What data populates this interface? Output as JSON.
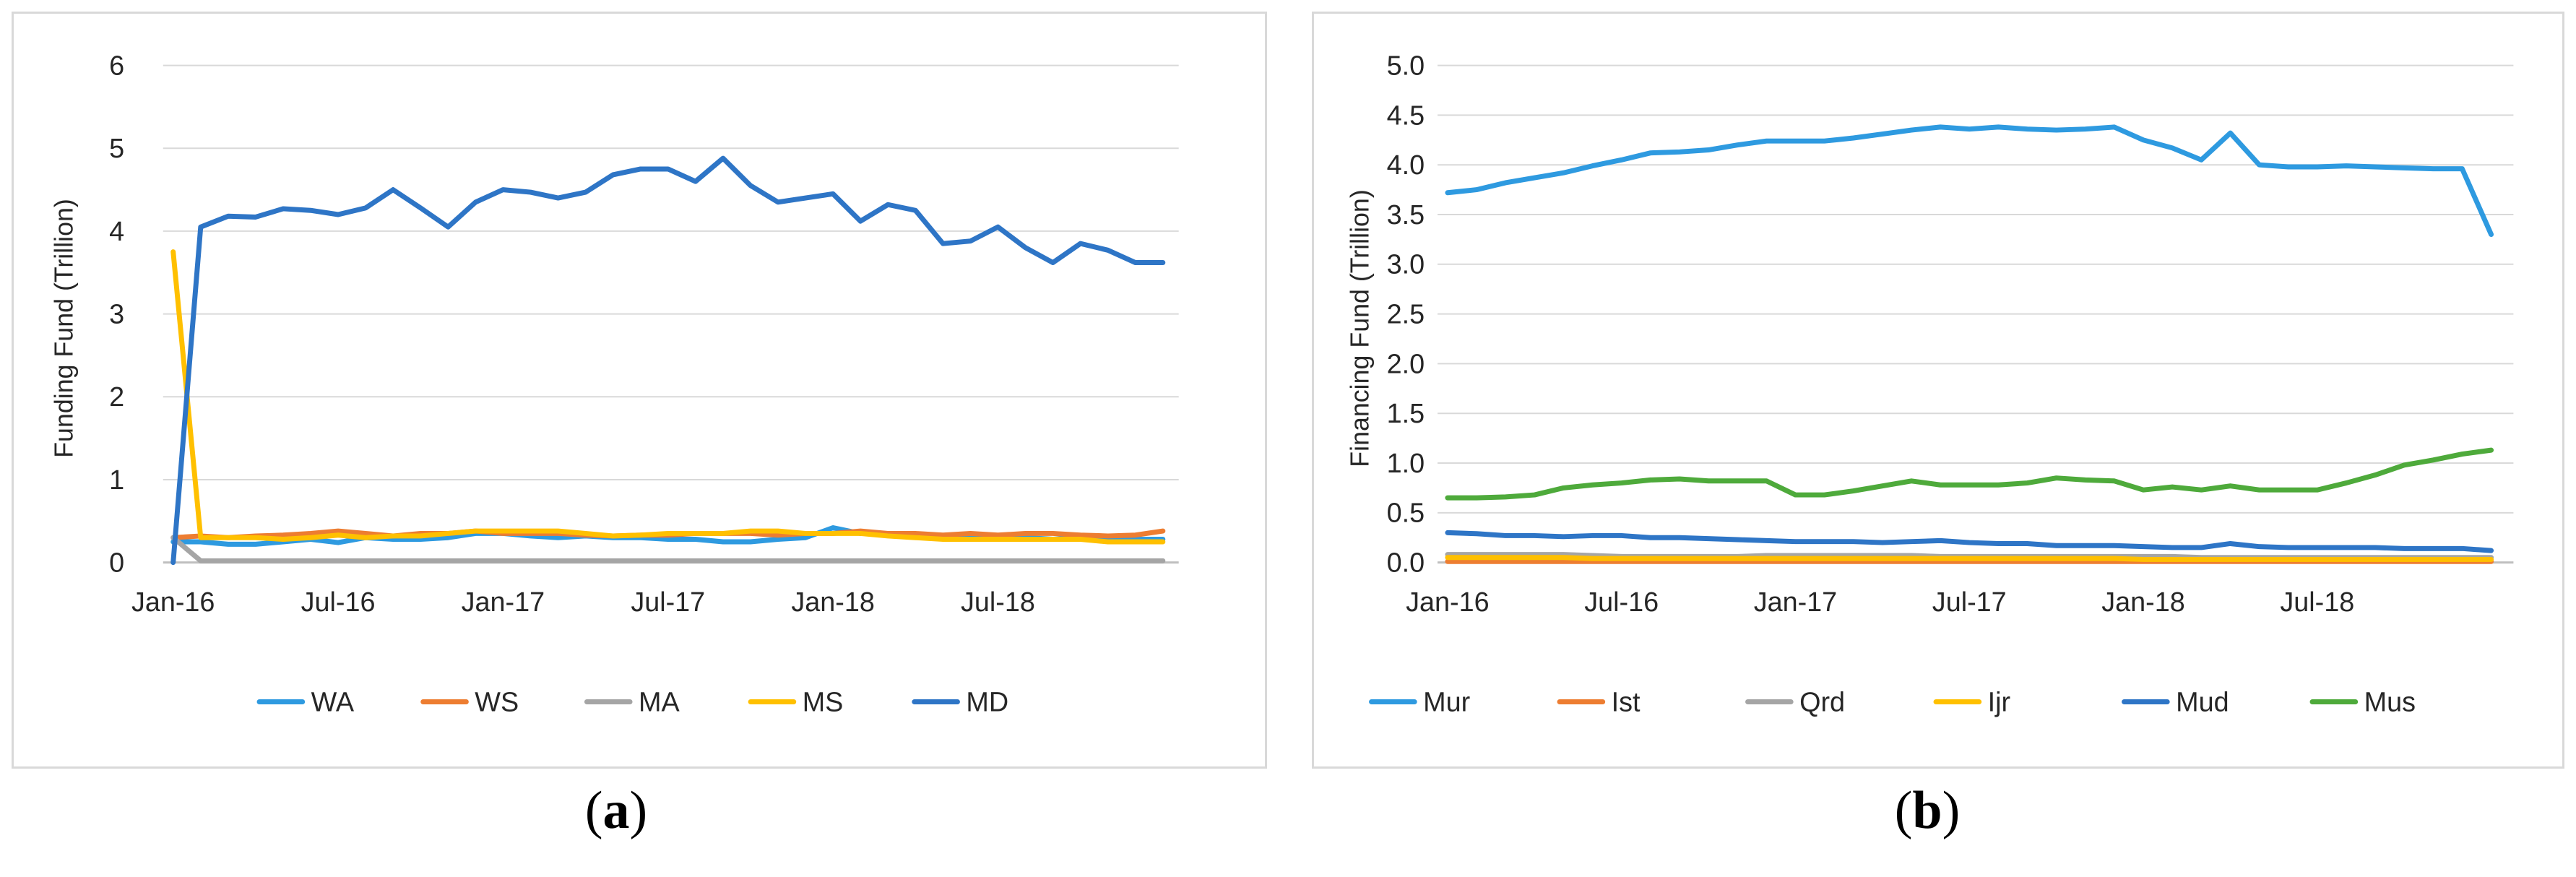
{
  "captions": {
    "a_open": "(",
    "a_letter": "a",
    "a_close": ")",
    "b_open": "(",
    "b_letter": "b",
    "b_close": ")"
  },
  "chart_data": [
    {
      "id": "a",
      "type": "line",
      "title": "",
      "xlabel": "",
      "ylabel": "Funding Fund (Trillion)",
      "ylim": [
        0,
        6
      ],
      "yticks": [
        0,
        1,
        2,
        3,
        4,
        5,
        6
      ],
      "ytick_labels": [
        "0",
        "1",
        "2",
        "3",
        "4",
        "5",
        "6"
      ],
      "xticks": [
        {
          "index": 0,
          "label": "Jan-16"
        },
        {
          "index": 6,
          "label": "Jul-16"
        },
        {
          "index": 12,
          "label": "Jan-17"
        },
        {
          "index": 18,
          "label": "Jul-17"
        },
        {
          "index": 24,
          "label": "Jan-18"
        },
        {
          "index": 30,
          "label": "Jul-18"
        }
      ],
      "grid": true,
      "legend_position": "bottom",
      "series": [
        {
          "name": "WA",
          "color": "#2e9ae0",
          "values": [
            0.25,
            0.25,
            0.22,
            0.22,
            0.25,
            0.28,
            0.24,
            0.3,
            0.28,
            0.28,
            0.3,
            0.35,
            0.35,
            0.32,
            0.3,
            0.32,
            0.3,
            0.3,
            0.28,
            0.28,
            0.25,
            0.25,
            0.28,
            0.3,
            0.42,
            0.35,
            0.35,
            0.33,
            0.32,
            0.3,
            0.3,
            0.3,
            0.28,
            0.3,
            0.28,
            0.28,
            0.28
          ]
        },
        {
          "name": "WS",
          "color": "#ed7d31",
          "values": [
            0.3,
            0.32,
            0.3,
            0.32,
            0.33,
            0.35,
            0.38,
            0.35,
            0.32,
            0.35,
            0.35,
            0.38,
            0.35,
            0.35,
            0.35,
            0.33,
            0.32,
            0.33,
            0.33,
            0.35,
            0.35,
            0.35,
            0.33,
            0.35,
            0.35,
            0.38,
            0.35,
            0.35,
            0.33,
            0.35,
            0.33,
            0.35,
            0.35,
            0.33,
            0.32,
            0.33,
            0.38
          ]
        },
        {
          "name": "MA",
          "color": "#a5a5a5",
          "values": [
            0.3,
            0.02,
            0.02,
            0.02,
            0.02,
            0.02,
            0.02,
            0.02,
            0.02,
            0.02,
            0.02,
            0.02,
            0.02,
            0.02,
            0.02,
            0.02,
            0.02,
            0.02,
            0.02,
            0.02,
            0.02,
            0.02,
            0.02,
            0.02,
            0.02,
            0.02,
            0.02,
            0.02,
            0.02,
            0.02,
            0.02,
            0.02,
            0.02,
            0.02,
            0.02,
            0.02,
            0.02
          ]
        },
        {
          "name": "MS",
          "color": "#ffc000",
          "values": [
            3.75,
            0.3,
            0.3,
            0.3,
            0.28,
            0.3,
            0.33,
            0.3,
            0.32,
            0.32,
            0.35,
            0.38,
            0.38,
            0.38,
            0.38,
            0.35,
            0.32,
            0.33,
            0.35,
            0.35,
            0.35,
            0.38,
            0.38,
            0.35,
            0.35,
            0.35,
            0.32,
            0.3,
            0.28,
            0.28,
            0.28,
            0.28,
            0.28,
            0.28,
            0.25,
            0.25,
            0.25
          ]
        },
        {
          "name": "MD",
          "color": "#2e75c6",
          "values": [
            0.0,
            4.05,
            4.18,
            4.17,
            4.27,
            4.25,
            4.2,
            4.28,
            4.5,
            4.28,
            4.05,
            4.35,
            4.5,
            4.47,
            4.4,
            4.47,
            4.68,
            4.75,
            4.75,
            4.6,
            4.88,
            4.55,
            4.35,
            4.4,
            4.45,
            4.12,
            4.32,
            4.25,
            3.85,
            3.88,
            4.05,
            3.8,
            3.62,
            3.85,
            3.77,
            3.62,
            3.62
          ]
        }
      ]
    },
    {
      "id": "b",
      "type": "line",
      "title": "",
      "xlabel": "",
      "ylabel": "Financing Fund (Trillion)",
      "ylim": [
        0,
        5
      ],
      "yticks": [
        0,
        0.5,
        1,
        1.5,
        2,
        2.5,
        3,
        3.5,
        4,
        4.5,
        5
      ],
      "ytick_labels": [
        "0.0",
        "0.5",
        "1.0",
        "1.5",
        "2.0",
        "2.5",
        "3.0",
        "3.5",
        "4.0",
        "4.5",
        "5.0"
      ],
      "xticks": [
        {
          "index": 0,
          "label": "Jan-16"
        },
        {
          "index": 6,
          "label": "Jul-16"
        },
        {
          "index": 12,
          "label": "Jan-17"
        },
        {
          "index": 18,
          "label": "Jul-17"
        },
        {
          "index": 24,
          "label": "Jan-18"
        },
        {
          "index": 30,
          "label": "Jul-18"
        }
      ],
      "grid": true,
      "legend_position": "bottom",
      "series": [
        {
          "name": "Mur",
          "color": "#2e9ae0",
          "values": [
            3.72,
            3.75,
            3.82,
            3.87,
            3.92,
            3.99,
            4.05,
            4.12,
            4.13,
            4.15,
            4.2,
            4.24,
            4.24,
            4.24,
            4.27,
            4.31,
            4.35,
            4.38,
            4.36,
            4.38,
            4.36,
            4.35,
            4.36,
            4.38,
            4.25,
            4.17,
            4.05,
            4.32,
            4.0,
            3.98,
            3.98,
            3.99,
            3.98,
            3.97,
            3.96,
            3.96,
            3.3
          ]
        },
        {
          "name": "Ist",
          "color": "#ed7d31",
          "values": [
            0.01,
            0.01,
            0.01,
            0.01,
            0.01,
            0.01,
            0.01,
            0.01,
            0.01,
            0.01,
            0.01,
            0.01,
            0.01,
            0.01,
            0.01,
            0.01,
            0.01,
            0.01,
            0.01,
            0.01,
            0.01,
            0.01,
            0.01,
            0.01,
            0.01,
            0.01,
            0.01,
            0.01,
            0.01,
            0.01,
            0.01,
            0.01,
            0.01,
            0.01,
            0.01,
            0.01,
            0.01
          ]
        },
        {
          "name": "Qrd",
          "color": "#a5a5a5",
          "values": [
            0.08,
            0.08,
            0.08,
            0.08,
            0.08,
            0.07,
            0.06,
            0.06,
            0.06,
            0.06,
            0.06,
            0.07,
            0.07,
            0.07,
            0.07,
            0.07,
            0.07,
            0.06,
            0.06,
            0.06,
            0.06,
            0.06,
            0.06,
            0.06,
            0.06,
            0.06,
            0.05,
            0.05,
            0.05,
            0.05,
            0.05,
            0.05,
            0.05,
            0.05,
            0.05,
            0.05,
            0.05
          ]
        },
        {
          "name": "Ijr",
          "color": "#ffc000",
          "values": [
            0.05,
            0.05,
            0.05,
            0.05,
            0.05,
            0.04,
            0.04,
            0.04,
            0.04,
            0.04,
            0.04,
            0.04,
            0.04,
            0.04,
            0.04,
            0.04,
            0.04,
            0.04,
            0.04,
            0.04,
            0.04,
            0.04,
            0.04,
            0.04,
            0.03,
            0.03,
            0.03,
            0.03,
            0.03,
            0.03,
            0.03,
            0.03,
            0.03,
            0.03,
            0.03,
            0.03,
            0.03
          ]
        },
        {
          "name": "Mud",
          "color": "#2e75c6",
          "values": [
            0.3,
            0.29,
            0.27,
            0.27,
            0.26,
            0.27,
            0.27,
            0.25,
            0.25,
            0.24,
            0.23,
            0.22,
            0.21,
            0.21,
            0.21,
            0.2,
            0.21,
            0.22,
            0.2,
            0.19,
            0.19,
            0.17,
            0.17,
            0.17,
            0.16,
            0.15,
            0.15,
            0.19,
            0.16,
            0.15,
            0.15,
            0.15,
            0.15,
            0.14,
            0.14,
            0.14,
            0.12
          ]
        },
        {
          "name": "Mus",
          "color": "#4eaa3b",
          "values": [
            0.65,
            0.65,
            0.66,
            0.68,
            0.75,
            0.78,
            0.8,
            0.83,
            0.84,
            0.82,
            0.82,
            0.82,
            0.68,
            0.68,
            0.72,
            0.77,
            0.82,
            0.78,
            0.78,
            0.78,
            0.8,
            0.85,
            0.83,
            0.82,
            0.73,
            0.76,
            0.73,
            0.77,
            0.73,
            0.73,
            0.73,
            0.8,
            0.88,
            0.98,
            1.03,
            1.09,
            1.13
          ]
        }
      ]
    }
  ]
}
